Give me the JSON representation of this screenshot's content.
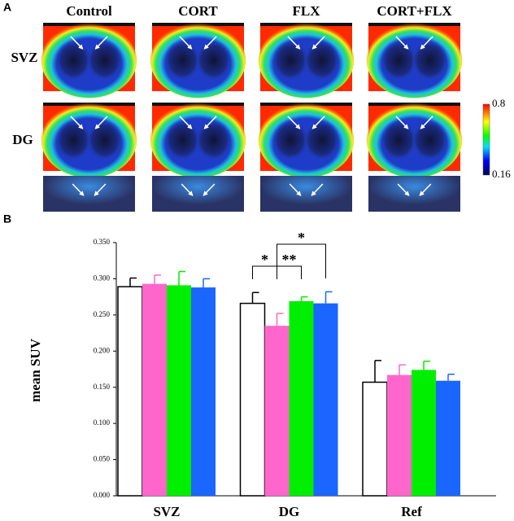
{
  "panel_a": {
    "label": "A",
    "rows": [
      "SVZ",
      "DG"
    ],
    "colorbar": {
      "max": 0.8,
      "min": 0.16
    }
  },
  "panel_b": {
    "label": "B"
  },
  "chart_data": {
    "type": "bar",
    "ylabel": "mean SUV",
    "categories": [
      "SVZ",
      "DG",
      "Ref"
    ],
    "series": [
      {
        "name": "Control",
        "color": "#ffffff",
        "values": [
          0.289,
          0.266,
          0.157
        ],
        "errors": [
          0.012,
          0.015,
          0.03
        ]
      },
      {
        "name": "CORT",
        "color": "#ff66cc",
        "values": [
          0.293,
          0.235,
          0.167
        ],
        "errors": [
          0.012,
          0.017,
          0.014
        ]
      },
      {
        "name": "FLX",
        "color": "#00ee00",
        "values": [
          0.291,
          0.269,
          0.174
        ],
        "errors": [
          0.019,
          0.006,
          0.012
        ]
      },
      {
        "name": "CORT+FLX",
        "color": "#1a66ff",
        "values": [
          0.288,
          0.266,
          0.159
        ],
        "errors": [
          0.012,
          0.016,
          0.009
        ]
      }
    ],
    "ylim": [
      0,
      0.35
    ],
    "yticks": [
      {
        "value": 0,
        "label": "0.000"
      },
      {
        "value": 0.05,
        "label": "0.050"
      },
      {
        "value": 0.1,
        "label": "0.100"
      },
      {
        "value": 0.15,
        "label": "0.150"
      },
      {
        "value": 0.2,
        "label": "0.200"
      },
      {
        "value": 0.25,
        "label": "0.250"
      },
      {
        "value": 0.3,
        "label": "0.300"
      },
      {
        "value": 0.35,
        "label": "0.350"
      }
    ],
    "annotations": [
      "*",
      "**",
      "*"
    ]
  }
}
